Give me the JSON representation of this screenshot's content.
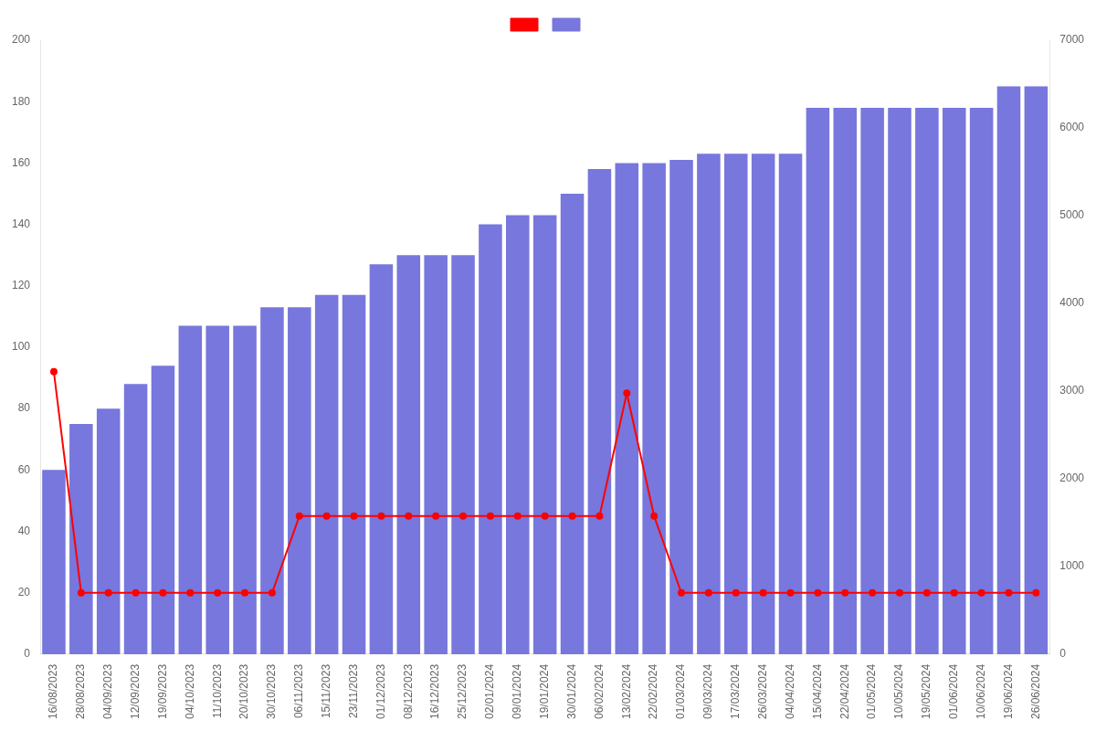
{
  "chart_data": {
    "type": "bar",
    "categories": [
      "16/08/2023",
      "28/08/2023",
      "04/09/2023",
      "12/09/2023",
      "19/09/2023",
      "04/10/2023",
      "11/10/2023",
      "20/10/2023",
      "30/10/2023",
      "06/11/2023",
      "15/11/2023",
      "23/11/2023",
      "01/12/2023",
      "08/12/2023",
      "16/12/2023",
      "25/12/2023",
      "02/01/2024",
      "09/01/2024",
      "19/01/2024",
      "30/01/2024",
      "06/02/2024",
      "13/02/2024",
      "22/02/2024",
      "01/03/2024",
      "09/03/2024",
      "17/03/2024",
      "26/03/2024",
      "04/04/2024",
      "15/04/2024",
      "22/04/2024",
      "01/05/2024",
      "10/05/2024",
      "19/05/2024",
      "01/06/2024",
      "10/06/2024",
      "19/06/2024",
      "26/06/2024"
    ],
    "series": [
      {
        "type": "bar",
        "color": "#7777dd",
        "values": [
          60,
          75,
          80,
          88,
          94,
          107,
          107,
          107,
          113,
          113,
          117,
          117,
          127,
          130,
          130,
          130,
          140,
          143,
          143,
          150,
          158,
          160,
          160,
          161,
          163,
          163,
          163,
          163,
          178,
          178,
          178,
          178,
          178,
          178,
          178,
          185,
          185
        ]
      },
      {
        "type": "line",
        "color": "#ff0000",
        "marker": "circle",
        "values": [
          92,
          20,
          20,
          20,
          20,
          20,
          20,
          20,
          20,
          45,
          45,
          45,
          45,
          45,
          45,
          45,
          45,
          45,
          45,
          45,
          45,
          85,
          45,
          20,
          20,
          20,
          20,
          20,
          20,
          20,
          20,
          20,
          20,
          20,
          20,
          20,
          20
        ]
      }
    ],
    "ylim": [
      0,
      200
    ],
    "yticks": [
      0,
      20,
      40,
      60,
      80,
      100,
      120,
      140,
      160,
      180,
      200
    ],
    "y2lim": [
      0,
      7000
    ],
    "y2ticks": [
      0,
      1000,
      2000,
      3000,
      4000,
      5000,
      6000,
      7000
    ],
    "grid": false,
    "legend": "top"
  }
}
